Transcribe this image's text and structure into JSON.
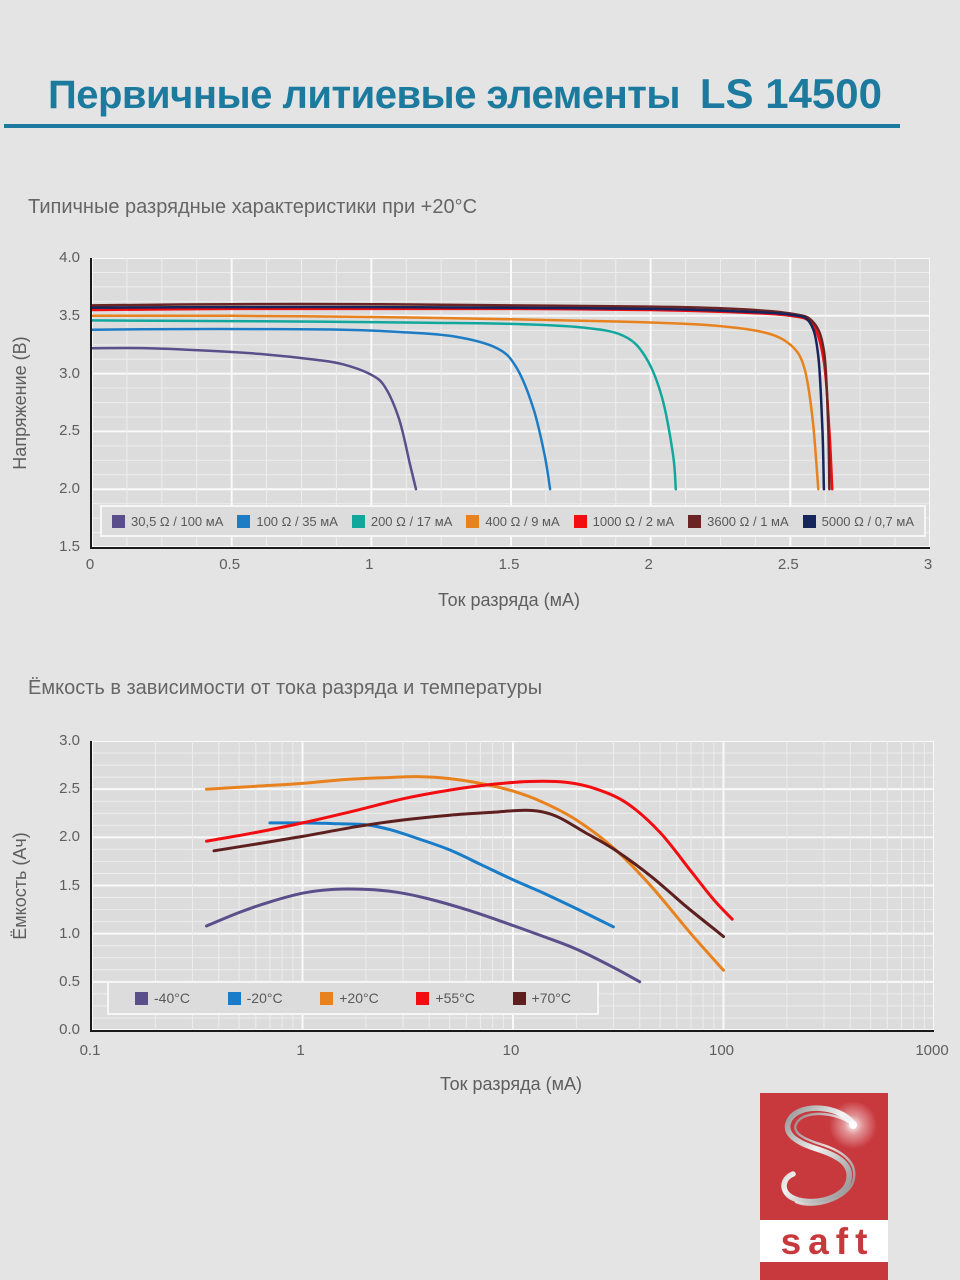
{
  "theme": {
    "accent": "#1B7A9E",
    "logo_red": "#C8393E",
    "page_bg": "#E4E4E4",
    "plot_bg": "#DCDCDC",
    "text_gray": "#5E5E5E"
  },
  "header": {
    "title": "Первичные литиевые элементы",
    "model": "LS 14500"
  },
  "logo": {
    "text": "saft"
  },
  "chart_data": [
    {
      "type": "line",
      "title": "Типичные разрядные характеристики при +20°C",
      "xlabel": "Ток разряда (мА)",
      "ylabel": "Напряжение (В)",
      "xscale": "linear",
      "xlim": [
        0,
        3
      ],
      "ylim": [
        1.5,
        4.0
      ],
      "xticks": [
        0,
        0.5,
        1,
        1.5,
        2,
        2.5,
        3
      ],
      "xtick_labels": [
        "0",
        "0.5",
        "1",
        "1.5",
        "2",
        "2.5",
        "3"
      ],
      "yticks": [
        4.0,
        3.5,
        3.0,
        2.5,
        2.0,
        1.5
      ],
      "ytick_labels": [
        "4.0",
        "3.5",
        "3.0",
        "2.5",
        "2.0",
        "1.5"
      ],
      "grid": {
        "x_minor": 0.125,
        "y_minor": 0.125
      },
      "legend_position": "inside-bottom",
      "series": [
        {
          "name": "30,5 Ω / 100 мА",
          "color": "#5B4F8B",
          "points": [
            [
              0,
              3.22
            ],
            [
              0.2,
              3.22
            ],
            [
              0.4,
              3.2
            ],
            [
              0.6,
              3.17
            ],
            [
              0.8,
              3.12
            ],
            [
              0.9,
              3.08
            ],
            [
              1.0,
              2.99
            ],
            [
              1.05,
              2.88
            ],
            [
              1.1,
              2.6
            ],
            [
              1.14,
              2.2
            ],
            [
              1.16,
              2.0
            ]
          ]
        },
        {
          "name": "100 Ω / 35 мА",
          "color": "#1E7CC4",
          "points": [
            [
              0,
              3.38
            ],
            [
              0.3,
              3.385
            ],
            [
              0.6,
              3.385
            ],
            [
              0.9,
              3.38
            ],
            [
              1.1,
              3.36
            ],
            [
              1.3,
              3.32
            ],
            [
              1.45,
              3.22
            ],
            [
              1.52,
              3.05
            ],
            [
              1.58,
              2.7
            ],
            [
              1.62,
              2.3
            ],
            [
              1.64,
              2.0
            ]
          ]
        },
        {
          "name": "200 Ω / 17 мА",
          "color": "#12A79D",
          "points": [
            [
              0,
              3.46
            ],
            [
              0.4,
              3.455
            ],
            [
              0.8,
              3.45
            ],
            [
              1.2,
              3.44
            ],
            [
              1.5,
              3.43
            ],
            [
              1.75,
              3.4
            ],
            [
              1.9,
              3.33
            ],
            [
              1.98,
              3.15
            ],
            [
              2.04,
              2.8
            ],
            [
              2.08,
              2.3
            ],
            [
              2.09,
              2.0
            ]
          ]
        },
        {
          "name": "400 Ω / 9 мА",
          "color": "#E8821E",
          "points": [
            [
              0,
              3.5
            ],
            [
              0.5,
              3.5
            ],
            [
              1.0,
              3.49
            ],
            [
              1.5,
              3.47
            ],
            [
              1.9,
              3.45
            ],
            [
              2.2,
              3.42
            ],
            [
              2.4,
              3.36
            ],
            [
              2.5,
              3.25
            ],
            [
              2.55,
              3.05
            ],
            [
              2.58,
              2.6
            ],
            [
              2.6,
              2.0
            ]
          ]
        },
        {
          "name": "1000 Ω / 2 мА",
          "color": "#F20D11",
          "points": [
            [
              0,
              3.55
            ],
            [
              0.5,
              3.56
            ],
            [
              1.0,
              3.56
            ],
            [
              1.5,
              3.56
            ],
            [
              2.0,
              3.55
            ],
            [
              2.3,
              3.53
            ],
            [
              2.5,
              3.5
            ],
            [
              2.58,
              3.42
            ],
            [
              2.62,
              3.1
            ],
            [
              2.64,
              2.5
            ],
            [
              2.65,
              2.0
            ]
          ]
        },
        {
          "name": "3600 Ω / 1 мА",
          "color": "#6B2424",
          "points": [
            [
              0,
              3.59
            ],
            [
              0.5,
              3.6
            ],
            [
              1.0,
              3.6
            ],
            [
              1.5,
              3.59
            ],
            [
              2.0,
              3.58
            ],
            [
              2.3,
              3.56
            ],
            [
              2.5,
              3.52
            ],
            [
              2.58,
              3.45
            ],
            [
              2.62,
              3.2
            ],
            [
              2.635,
              2.6
            ],
            [
              2.64,
              2.0
            ]
          ]
        },
        {
          "name": "5000 Ω / 0,7 мА",
          "color": "#16265C",
          "points": [
            [
              0,
              3.57
            ],
            [
              0.5,
              3.575
            ],
            [
              1.0,
              3.575
            ],
            [
              1.5,
              3.57
            ],
            [
              2.0,
              3.56
            ],
            [
              2.3,
              3.54
            ],
            [
              2.5,
              3.51
            ],
            [
              2.57,
              3.44
            ],
            [
              2.6,
              3.15
            ],
            [
              2.615,
              2.5
            ],
            [
              2.62,
              2.0
            ]
          ]
        }
      ]
    },
    {
      "type": "line",
      "title": "Ёмкость в зависимости от тока разряда и температуры",
      "xlabel": "Ток разряда (мА)",
      "ylabel": "Ёмкость (Ач)",
      "xscale": "log",
      "xlim": [
        0.1,
        1000
      ],
      "ylim": [
        0.0,
        3.0
      ],
      "xticks": [
        0.1,
        1,
        10,
        100,
        1000
      ],
      "xtick_labels": [
        "0.1",
        "1",
        "10",
        "100",
        "1000"
      ],
      "yticks": [
        3.0,
        2.5,
        2.0,
        1.5,
        1.0,
        0.5,
        0.0
      ],
      "ytick_labels": [
        "3.0",
        "2.5",
        "2.0",
        "1.5",
        "1.0",
        "0.5",
        "0.0"
      ],
      "grid": {
        "y_minor": 0.125,
        "log_x_minor": true
      },
      "legend_position": "inside-bottom-left",
      "series": [
        {
          "name": "-40°C",
          "color": "#5B4F8B",
          "points": [
            [
              0.35,
              1.08
            ],
            [
              0.5,
              1.22
            ],
            [
              0.7,
              1.33
            ],
            [
              1.0,
              1.42
            ],
            [
              1.4,
              1.46
            ],
            [
              2.0,
              1.46
            ],
            [
              2.8,
              1.43
            ],
            [
              4,
              1.36
            ],
            [
              6,
              1.25
            ],
            [
              9,
              1.12
            ],
            [
              14,
              0.97
            ],
            [
              20,
              0.84
            ],
            [
              30,
              0.65
            ],
            [
              40,
              0.5
            ]
          ]
        },
        {
          "name": "-20°C",
          "color": "#187CC8",
          "points": [
            [
              0.7,
              2.15
            ],
            [
              1.0,
              2.15
            ],
            [
              1.5,
              2.14
            ],
            [
              2.0,
              2.13
            ],
            [
              2.6,
              2.08
            ],
            [
              3.5,
              1.99
            ],
            [
              5,
              1.87
            ],
            [
              7,
              1.72
            ],
            [
              10,
              1.56
            ],
            [
              14,
              1.42
            ],
            [
              20,
              1.26
            ],
            [
              30,
              1.07
            ]
          ]
        },
        {
          "name": "+20°C",
          "color": "#E8821E",
          "points": [
            [
              0.35,
              2.5
            ],
            [
              0.6,
              2.53
            ],
            [
              1.0,
              2.56
            ],
            [
              1.6,
              2.6
            ],
            [
              2.5,
              2.62
            ],
            [
              3.5,
              2.63
            ],
            [
              5,
              2.61
            ],
            [
              7,
              2.56
            ],
            [
              10,
              2.48
            ],
            [
              14,
              2.36
            ],
            [
              20,
              2.18
            ],
            [
              30,
              1.89
            ],
            [
              45,
              1.5
            ],
            [
              70,
              1.0
            ],
            [
              100,
              0.62
            ]
          ]
        },
        {
          "name": "+55°C",
          "color": "#F20D11",
          "points": [
            [
              0.35,
              1.96
            ],
            [
              0.6,
              2.05
            ],
            [
              1.0,
              2.15
            ],
            [
              1.8,
              2.28
            ],
            [
              3,
              2.4
            ],
            [
              5,
              2.49
            ],
            [
              8,
              2.55
            ],
            [
              12,
              2.58
            ],
            [
              18,
              2.57
            ],
            [
              25,
              2.5
            ],
            [
              35,
              2.35
            ],
            [
              50,
              2.05
            ],
            [
              70,
              1.65
            ],
            [
              90,
              1.35
            ],
            [
              110,
              1.15
            ]
          ]
        },
        {
          "name": "+70°C",
          "color": "#5E1F1F",
          "points": [
            [
              0.38,
              1.86
            ],
            [
              0.6,
              1.93
            ],
            [
              1.0,
              2.01
            ],
            [
              1.8,
              2.11
            ],
            [
              3,
              2.18
            ],
            [
              5,
              2.23
            ],
            [
              8,
              2.26
            ],
            [
              12,
              2.28
            ],
            [
              16,
              2.22
            ],
            [
              22,
              2.05
            ],
            [
              30,
              1.88
            ],
            [
              45,
              1.6
            ],
            [
              65,
              1.3
            ],
            [
              90,
              1.05
            ],
            [
              100,
              0.97
            ]
          ]
        }
      ]
    }
  ]
}
